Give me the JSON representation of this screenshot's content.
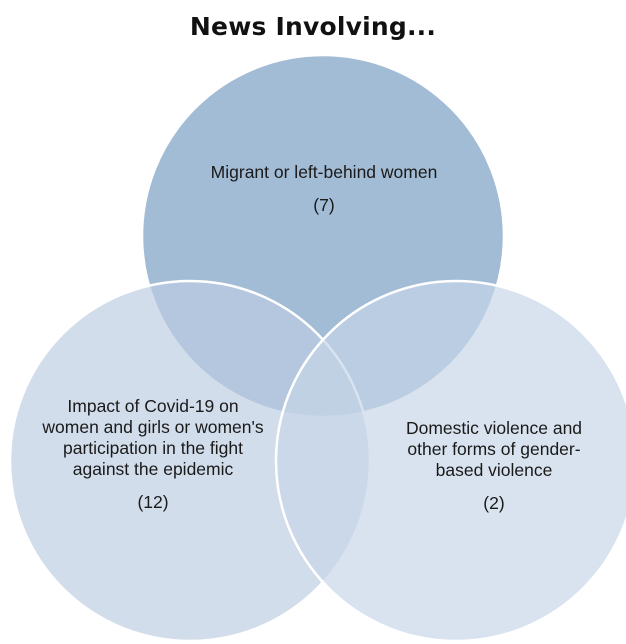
{
  "title": "News Involving...",
  "sets": [
    {
      "label": "Migrant or left-behind women",
      "count": "(7)",
      "color": "#8fadcc"
    },
    {
      "label": "Impact of Covid-19 on women and girls or women's participation in the fight against the epidemic",
      "count": "(12)",
      "color": "#b9cbe0"
    },
    {
      "label": "Domestic violence and other forms of gender-based violence",
      "count": "(2)",
      "color": "#c8d7e9"
    }
  ]
}
